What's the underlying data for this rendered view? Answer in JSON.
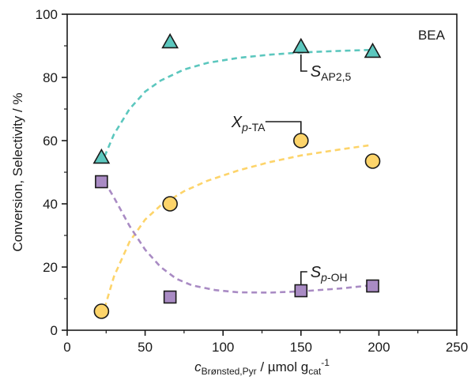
{
  "chart_data": {
    "type": "scatter",
    "xlabel": {
      "main": "c",
      "sub": "Brønsted,Pyr",
      "unit_prefix": " / µmol g",
      "unit_sub": "cat",
      "unit_sup": "-1"
    },
    "ylabel": "Conversion, Selectivity / %",
    "xlim": [
      0,
      250
    ],
    "ylim": [
      0,
      100
    ],
    "x_ticks": [
      0,
      50,
      100,
      150,
      200,
      250
    ],
    "y_ticks": [
      0,
      20,
      40,
      60,
      80,
      100
    ],
    "grid": false,
    "panel_label": "BEA",
    "series": [
      {
        "name": "S_AP2,5",
        "label_main": "S",
        "label_sub": "AP2,5",
        "marker": "triangle",
        "color": "#5cc7be",
        "points": [
          [
            22,
            54.5
          ],
          [
            66,
            91
          ],
          [
            150,
            89.5
          ],
          [
            196,
            88
          ]
        ],
        "fit": [
          [
            24,
            55
          ],
          [
            30,
            62
          ],
          [
            40,
            70
          ],
          [
            50,
            75.5
          ],
          [
            60,
            79
          ],
          [
            75,
            82.5
          ],
          [
            90,
            84.6
          ],
          [
            110,
            86.2
          ],
          [
            130,
            87.2
          ],
          [
            150,
            87.9
          ],
          [
            175,
            88.4
          ],
          [
            195,
            88.7
          ]
        ]
      },
      {
        "name": "X_p-TA",
        "label_main": "X",
        "label_sub": "p-TA",
        "marker": "circle",
        "color": "#fdd46a",
        "points": [
          [
            22,
            6
          ],
          [
            66,
            40
          ],
          [
            150,
            60
          ],
          [
            196,
            53.5
          ]
        ],
        "fit": [
          [
            24,
            7
          ],
          [
            30,
            17
          ],
          [
            40,
            28
          ],
          [
            50,
            35
          ],
          [
            60,
            39.5
          ],
          [
            75,
            44
          ],
          [
            90,
            47.3
          ],
          [
            110,
            50.6
          ],
          [
            130,
            53.2
          ],
          [
            150,
            55.3
          ],
          [
            175,
            57.2
          ],
          [
            195,
            58.6
          ]
        ]
      },
      {
        "name": "S_p-OH",
        "label_main": "S",
        "label_sub": "p-OH",
        "marker": "square",
        "color": "#a98bc4",
        "points": [
          [
            22,
            47
          ],
          [
            66,
            10.5
          ],
          [
            150,
            12.5
          ],
          [
            196,
            14
          ]
        ],
        "fit": [
          [
            24,
            47
          ],
          [
            30,
            42
          ],
          [
            40,
            33
          ],
          [
            50,
            25.5
          ],
          [
            60,
            20
          ],
          [
            70,
            16.3
          ],
          [
            80,
            14.2
          ],
          [
            95,
            12.7
          ],
          [
            110,
            12
          ],
          [
            130,
            11.9
          ],
          [
            150,
            12.3
          ],
          [
            175,
            13.2
          ],
          [
            195,
            14.2
          ]
        ]
      }
    ]
  }
}
